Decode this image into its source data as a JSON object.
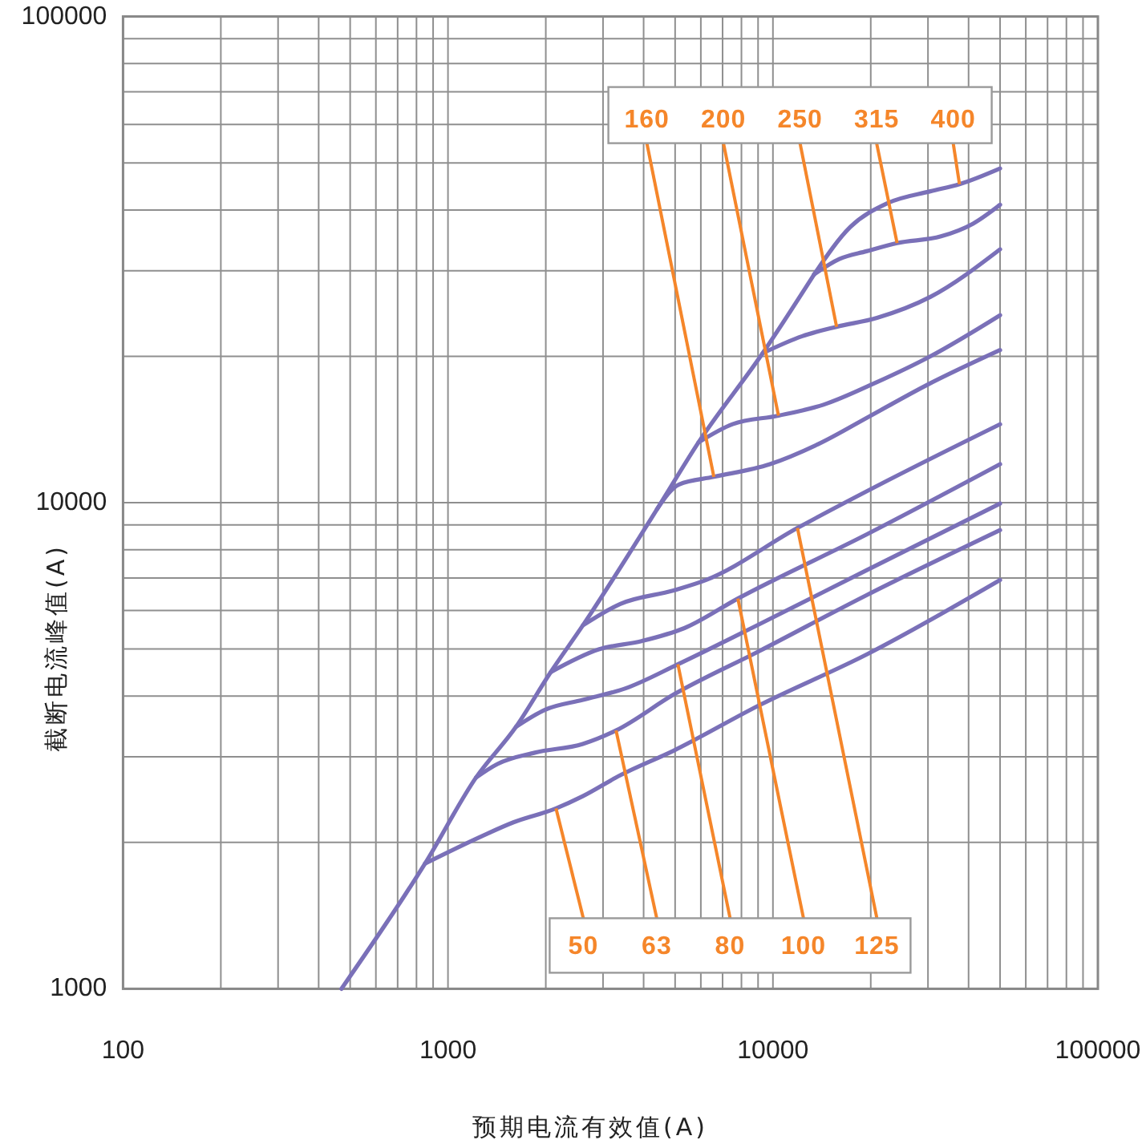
{
  "chart_data": {
    "type": "line",
    "xlabel": "预期电流有效值(A)",
    "ylabel": "截断电流峰值(A)",
    "log": "xy",
    "grid": true,
    "xlim": [
      100,
      100000
    ],
    "ylim": [
      1000,
      100000
    ],
    "xticks": [
      100,
      {
        "value": 200,
        "label": null
      },
      {
        "value": 300,
        "label": null
      },
      {
        "value": 400,
        "label": null
      },
      {
        "value": 500,
        "label": null
      },
      {
        "value": 600,
        "label": null
      },
      {
        "value": 700,
        "label": null
      },
      {
        "value": 800,
        "label": null
      },
      {
        "value": 900,
        "label": null
      },
      1000,
      {
        "value": 2000,
        "label": null
      },
      {
        "value": 3000,
        "label": null
      },
      {
        "value": 4000,
        "label": null
      },
      {
        "value": 5000,
        "label": null
      },
      {
        "value": 6000,
        "label": null
      },
      {
        "value": 7000,
        "label": null
      },
      {
        "value": 8000,
        "label": null
      },
      {
        "value": 9000,
        "label": null
      },
      10000,
      {
        "value": 20000,
        "label": null
      },
      {
        "value": 30000,
        "label": null
      },
      {
        "value": 40000,
        "label": null
      },
      {
        "value": 50000,
        "label": null
      },
      {
        "value": 60000,
        "label": null
      },
      {
        "value": 70000,
        "label": null
      },
      {
        "value": 80000,
        "label": null
      },
      {
        "value": 90000,
        "label": null
      },
      100000
    ],
    "yticks": [
      1000,
      {
        "value": 2000,
        "label": null
      },
      {
        "value": 3000,
        "label": null
      },
      {
        "value": 4000,
        "label": null
      },
      {
        "value": 5000,
        "label": null
      },
      {
        "value": 6000,
        "label": null
      },
      {
        "value": 7000,
        "label": null
      },
      {
        "value": 8000,
        "label": null
      },
      {
        "value": 9000,
        "label": null
      },
      10000,
      {
        "value": 20000,
        "label": null
      },
      {
        "value": 30000,
        "label": null
      },
      {
        "value": 40000,
        "label": null
      },
      {
        "value": 50000,
        "label": null
      },
      {
        "value": 60000,
        "label": null
      },
      {
        "value": 70000,
        "label": null
      },
      {
        "value": 80000,
        "label": null
      },
      {
        "value": 90000,
        "label": null
      },
      100000
    ],
    "series": [
      {
        "color": "#7a70b8",
        "x": [
          470,
          850,
          1220,
          1620,
          2070,
          2600,
          4400,
          5900,
          9300,
          13400
        ],
        "values": [
          1000,
          1810,
          2720,
          3460,
          4480,
          5590,
          9700,
          13300,
          20300,
          29500
        ]
      },
      {
        "color": "#7a70b8",
        "x": [
          850,
          1270,
          1590,
          2150,
          2600,
          3390,
          4950,
          9070,
          19400,
          50000
        ],
        "values": [
          1810,
          2060,
          2200,
          2350,
          2490,
          2750,
          3090,
          3830,
          4870,
          6930
        ]
      },
      {
        "color": "#7a70b8",
        "x": [
          1220,
          1420,
          1850,
          2600,
          3290,
          4950,
          9070,
          19400,
          50000
        ],
        "values": [
          2720,
          2900,
          3060,
          3190,
          3400,
          4030,
          4950,
          6450,
          8780
        ]
      },
      {
        "color": "#7a70b8",
        "x": [
          1620,
          1990,
          2600,
          3520,
          5100,
          9070,
          19400,
          50000
        ],
        "values": [
          3460,
          3750,
          3930,
          4150,
          4650,
          5620,
          7260,
          9960
        ]
      },
      {
        "color": "#7a70b8",
        "x": [
          2070,
          2910,
          3940,
          5340,
          7800,
          19400,
          50000
        ],
        "values": [
          4480,
          4990,
          5190,
          5520,
          6350,
          8600,
          12000
        ]
      },
      {
        "color": "#7a70b8",
        "x": [
          2600,
          3390,
          4950,
          6210,
          11900,
          22500,
          50000
        ],
        "values": [
          5590,
          6190,
          6600,
          6930,
          8870,
          11100,
          14500
        ]
      },
      {
        "color": "#7a70b8",
        "x": [
          4400,
          5140,
          6580,
          9790,
          13800,
          20000,
          29500,
          50000
        ],
        "values": [
          9700,
          10900,
          11300,
          12000,
          13200,
          15100,
          17400,
          20600
        ]
      },
      {
        "color": "#7a70b8",
        "x": [
          5900,
          7510,
          10400,
          14300,
          20900,
          30500,
          50000
        ],
        "values": [
          13300,
          14500,
          15100,
          15900,
          17700,
          20000,
          24300
        ]
      },
      {
        "color": "#7a70b8",
        "x": [
          9300,
          12300,
          15700,
          20900,
          30500,
          50000
        ],
        "values": [
          20300,
          22000,
          23000,
          24000,
          26500,
          33200
        ]
      },
      {
        "color": "#7a70b8",
        "x": [
          13400,
          16000,
          19400,
          24100,
          32900,
          41300,
          50000
        ],
        "values": [
          29500,
          31700,
          32900,
          34200,
          35300,
          37500,
          41000
        ]
      },
      {
        "color": "#7a70b8",
        "x": [
          13400,
          17300,
          22500,
          30500,
          37500,
          50000
        ],
        "values": [
          29500,
          36900,
          41300,
          43700,
          45200,
          48700
        ]
      }
    ],
    "annotations": [
      {
        "text": "50",
        "x": 2150,
        "y": 2350
      },
      {
        "text": "63",
        "x": 3290,
        "y": 3400
      },
      {
        "text": "80",
        "x": 5100,
        "y": 4650
      },
      {
        "text": "100",
        "x": 7800,
        "y": 6350
      },
      {
        "text": "125",
        "x": 11900,
        "y": 8870
      },
      {
        "text": "160",
        "x": 6580,
        "y": 11300
      },
      {
        "text": "200",
        "x": 10400,
        "y": 15100
      },
      {
        "text": "250",
        "x": 15700,
        "y": 23000
      },
      {
        "text": "315",
        "x": 24100,
        "y": 34200
      },
      {
        "text": "400",
        "x": 37500,
        "y": 45200
      }
    ]
  }
}
